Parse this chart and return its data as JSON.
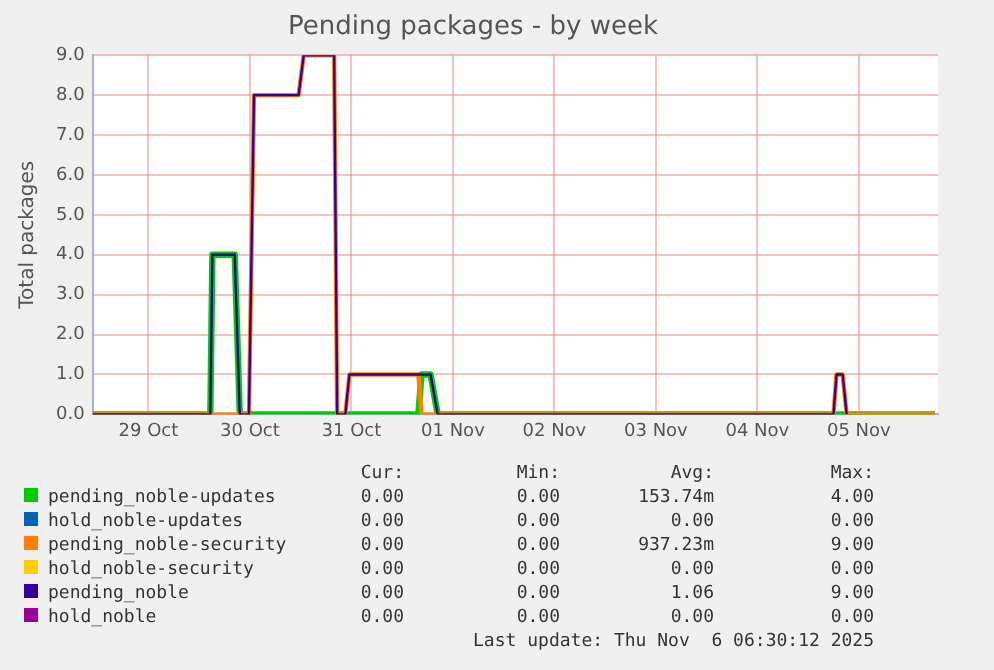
{
  "chart_data": {
    "type": "line",
    "title": "Pending packages - by week",
    "ylabel": "Total packages",
    "xlim": [
      "2025-10-28T10:48",
      "2025-11-05T18:43"
    ],
    "xticks": [
      {
        "value": "2025-10-29",
        "label": "29 Oct"
      },
      {
        "value": "2025-10-30",
        "label": "30 Oct"
      },
      {
        "value": "2025-10-31",
        "label": "31 Oct"
      },
      {
        "value": "2025-11-01",
        "label": "01 Nov"
      },
      {
        "value": "2025-11-02",
        "label": "02 Nov"
      },
      {
        "value": "2025-11-03",
        "label": "03 Nov"
      },
      {
        "value": "2025-11-04",
        "label": "04 Nov"
      },
      {
        "value": "2025-11-05",
        "label": "05 Nov"
      }
    ],
    "ylim": [
      0,
      9
    ],
    "yticks": [
      {
        "value": 0,
        "label": "0.0"
      },
      {
        "value": 1,
        "label": "1.0"
      },
      {
        "value": 2,
        "label": "2.0"
      },
      {
        "value": 3,
        "label": "3.0"
      },
      {
        "value": 4,
        "label": "4.0"
      },
      {
        "value": 5,
        "label": "5.0"
      },
      {
        "value": 6,
        "label": "6.0"
      },
      {
        "value": 7,
        "label": "7.0"
      },
      {
        "value": 8,
        "label": "8.0"
      },
      {
        "value": 9,
        "label": "9.0"
      }
    ],
    "grid": true,
    "legend": "bottom",
    "marker": "none",
    "line_style": "solid",
    "series": [
      {
        "name": "pending_noble-updates",
        "color": "#00cc00",
        "x": [
          "2025-10-28T10:48",
          "2025-10-29T14:38",
          "2025-10-29T15:07",
          "2025-10-29T20:24",
          "2025-10-29T21:36",
          "2025-10-31T15:50",
          "2025-10-31T16:34",
          "2025-10-31T18:43",
          "2025-10-31T20:24",
          "2025-11-05T18:00"
        ],
        "values": [
          0,
          0,
          4,
          4,
          0,
          0,
          1,
          1,
          0,
          0
        ]
      },
      {
        "name": "hold_noble-updates",
        "color": "#0066b3"
      },
      {
        "name": "pending_noble-security",
        "color": "#ff8000",
        "x": [
          "2025-10-28T10:48",
          "2025-10-29T23:46",
          "2025-10-30T00:58",
          "2025-10-30T11:31",
          "2025-10-30T12:43",
          "2025-10-30T19:55",
          "2025-10-30T20:38",
          "2025-10-30T22:34",
          "2025-10-30T23:31",
          "2025-10-31T15:50",
          "2025-10-31T16:34",
          "2025-11-04T18:00",
          "2025-11-04T18:43",
          "2025-11-04T20:10",
          "2025-11-04T21:07",
          "2025-11-05T18:00"
        ],
        "values": [
          0,
          0,
          8,
          8,
          9,
          9,
          0,
          0,
          1,
          1,
          0,
          0,
          1,
          1,
          0,
          0
        ]
      },
      {
        "name": "hold_noble-security",
        "color": "#ffcc00"
      },
      {
        "name": "pending_noble",
        "color": "#330099",
        "x": [
          "2025-10-28T10:48",
          "2025-10-29T14:38",
          "2025-10-29T15:07",
          "2025-10-29T20:24",
          "2025-10-29T21:36",
          "2025-10-29T23:46",
          "2025-10-30T00:58",
          "2025-10-30T11:31",
          "2025-10-30T12:43",
          "2025-10-30T19:55",
          "2025-10-30T20:38",
          "2025-10-30T22:34",
          "2025-10-30T23:31",
          "2025-10-31T18:43",
          "2025-10-31T20:24",
          "2025-11-04T18:00",
          "2025-11-04T18:43",
          "2025-11-04T20:10",
          "2025-11-04T21:07"
        ],
        "values": [
          0,
          0,
          4,
          4,
          0,
          0,
          8,
          8,
          9,
          9,
          0,
          0,
          1,
          1,
          0,
          0,
          1,
          1,
          0
        ]
      },
      {
        "name": "hold_noble",
        "color": "#990099"
      }
    ],
    "annotations": [
      "Cur:",
      "Min:",
      "Avg:",
      "Max:",
      "0.00",
      "0.00",
      "153.74m",
      "4.00",
      "0.00",
      "0.00",
      "0.00",
      "0.00",
      "0.00",
      "0.00",
      "937.23m",
      "9.00",
      "0.00",
      "0.00",
      "0.00",
      "0.00",
      "0.00",
      "0.00",
      "1.06",
      "9.00",
      "0.00",
      "0.00",
      "0.00",
      "0.00",
      "Last update: Thu Nov  6 06:30:12 2025"
    ]
  }
}
